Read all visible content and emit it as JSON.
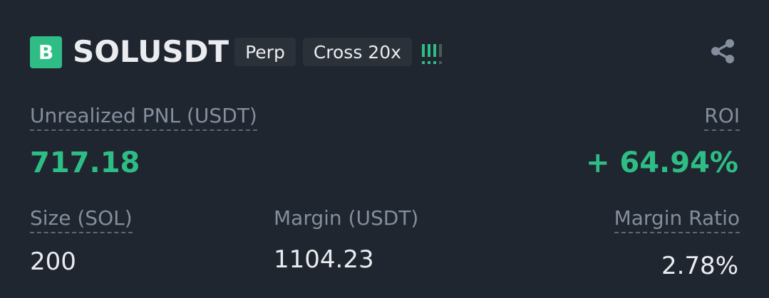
{
  "position": {
    "side_badge": "B",
    "symbol": "SOLUSDT",
    "contract_type": "Perp",
    "margin_mode": "Cross 20x",
    "risk_level_bars": 4,
    "risk_level_filled": 3
  },
  "metrics": {
    "unrealized_pnl_label": "Unrealized PNL (USDT)",
    "unrealized_pnl_value": "717.18",
    "roi_label": "ROI",
    "roi_value": "+ 64.94%",
    "size_label": "Size (SOL)",
    "size_value": "200",
    "margin_label": "Margin (USDT)",
    "margin_value": "1104.23",
    "margin_ratio_label": "Margin Ratio",
    "margin_ratio_value": "2.78%"
  },
  "icons": {
    "share": "share-icon"
  },
  "colors": {
    "background": "#1f2630",
    "positive": "#2ebd85",
    "muted": "#848e9c",
    "tag_bg": "#2b3139"
  }
}
